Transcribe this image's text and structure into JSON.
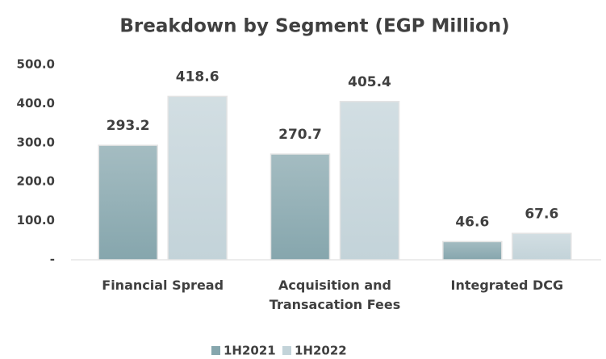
{
  "chart_data": {
    "type": "bar",
    "title": "Breakdown by Segment (EGP Million)",
    "categories": [
      "Financial Spread",
      "Acquisition and Transacation Fees",
      "Integrated DCG"
    ],
    "series": [
      {
        "name": "1H2021",
        "color": "#86a6ad",
        "values": [
          293.2,
          270.7,
          46.6
        ]
      },
      {
        "name": "1H2022",
        "color": "#c3d3d9",
        "values": [
          418.6,
          405.4,
          67.6
        ]
      }
    ],
    "ylim": [
      0,
      500
    ],
    "yticks": [
      {
        "value": 0,
        "label": "-"
      },
      {
        "value": 100,
        "label": "100.0"
      },
      {
        "value": 200,
        "label": "200.0"
      },
      {
        "value": 300,
        "label": "300.0"
      },
      {
        "value": 400,
        "label": "400.0"
      },
      {
        "value": 500,
        "label": "500.0"
      }
    ],
    "grid": false,
    "legend": "bottom"
  }
}
